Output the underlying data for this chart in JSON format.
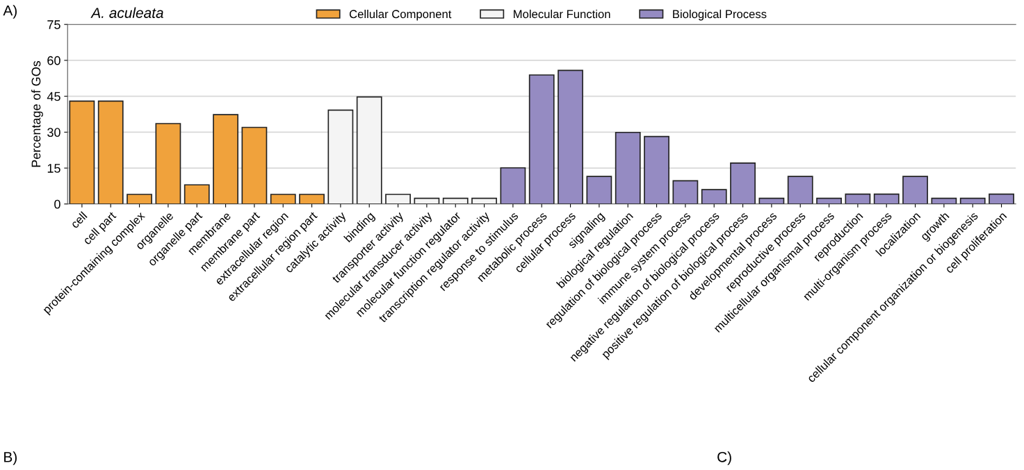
{
  "chart_data": {
    "type": "bar",
    "title": "A. aculeata",
    "ylabel": "Percentage of GOs",
    "categories": [
      "cell",
      "cell part",
      "protein-containing complex",
      "organelle",
      "organelle part",
      "membrane",
      "membrane part",
      "extracellular region",
      "extracellular region part",
      "catalytic activity",
      "binding",
      "transporter activity",
      "molecular transducer activity",
      "molecular function regulator",
      "transcription regulator activity",
      "response to stimulus",
      "metabolic process",
      "cellular process",
      "signaling",
      "biological regulation",
      "regulation of biological process",
      "immune system process",
      "negative regulation of biological process",
      "positive regulation of biological process",
      "developmental process",
      "reproductive process",
      "multicellular organismal process",
      "reproduction",
      "multi-organism process",
      "localization",
      "growth",
      "cellular component organization or biogenesis",
      "cell proliferation"
    ],
    "series": [
      {
        "name": "Cellular Component",
        "color": "#f0a23c",
        "values": [
          43,
          43,
          4,
          33.6,
          8,
          37.3,
          32,
          4,
          4,
          null,
          null,
          null,
          null,
          null,
          null,
          null,
          null,
          null,
          null,
          null,
          null,
          null,
          null,
          null,
          null,
          null,
          null,
          null,
          null,
          null,
          null,
          null,
          null
        ]
      },
      {
        "name": "Molecular Function",
        "color": "#f4f4f4",
        "values": [
          null,
          null,
          null,
          null,
          null,
          null,
          null,
          null,
          null,
          39.2,
          44.7,
          4,
          2.4,
          2.4,
          2.4,
          null,
          null,
          null,
          null,
          null,
          null,
          null,
          null,
          null,
          null,
          null,
          null,
          null,
          null,
          null,
          null,
          null,
          null
        ]
      },
      {
        "name": "Biological Process",
        "color": "#958bc2",
        "values": [
          null,
          null,
          null,
          null,
          null,
          null,
          null,
          null,
          null,
          null,
          null,
          null,
          null,
          null,
          null,
          15.1,
          53.9,
          55.8,
          11.5,
          29.9,
          28.2,
          9.7,
          6,
          17.1,
          2.4,
          11.5,
          2.4,
          4.1,
          4.1,
          11.5,
          2.4,
          2.4,
          4.1
        ]
      }
    ],
    "ylim": [
      0,
      75
    ],
    "yticks": [
      0,
      15,
      30,
      45,
      60,
      75
    ],
    "grid": "y",
    "legend": "top",
    "annotations": [
      "A)",
      "B)",
      "C)"
    ]
  }
}
